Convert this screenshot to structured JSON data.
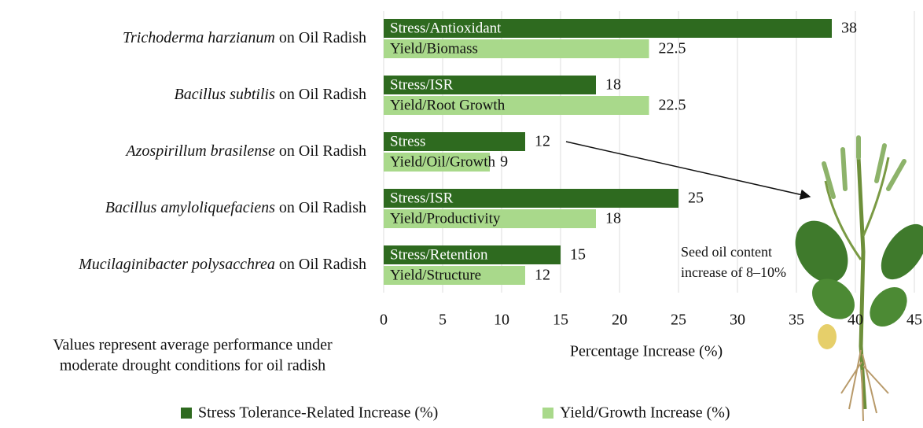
{
  "chart_data": {
    "type": "bar",
    "orientation": "horizontal",
    "categories": [
      "Trichoderma harzianum on Oil Radish",
      "Bacillus subtilis on Oil Radish",
      "Azospirillum brasilense on Oil Radish",
      "Bacillus amyloliquefaciens on Oil Radish",
      "Mucilaginibacter polysacchrea on Oil Radish"
    ],
    "series": [
      {
        "name": "Stress Tolerance-Related Increase (%)",
        "color": "#2e6a1f",
        "values": [
          38,
          18,
          12,
          25,
          15
        ],
        "bar_labels": [
          "Stress/Antioxidant",
          "Stress/ISR",
          "Stress",
          "Stress/ISR",
          "Stress/Retention"
        ]
      },
      {
        "name": "Yield/Growth Increase (%)",
        "color": "#a9d98b",
        "values": [
          22.5,
          22.5,
          9,
          18,
          12
        ],
        "bar_labels": [
          "Yield/Biomass",
          "Yield/Root Growth",
          "Yield/Oil/Growth",
          "Yield/Productivity",
          "Yield/Structure"
        ]
      }
    ],
    "xlabel": "Percentage Increase (%)",
    "xlim": [
      0,
      45
    ],
    "xticks": [
      0,
      5,
      10,
      15,
      20,
      25,
      30,
      35,
      40,
      45
    ],
    "grid": true,
    "note": [
      "Values represent average performance under",
      "moderate drought conditions for oil radish"
    ],
    "annotation": [
      "Seed oil content",
      "increase of 8–10%"
    ]
  }
}
